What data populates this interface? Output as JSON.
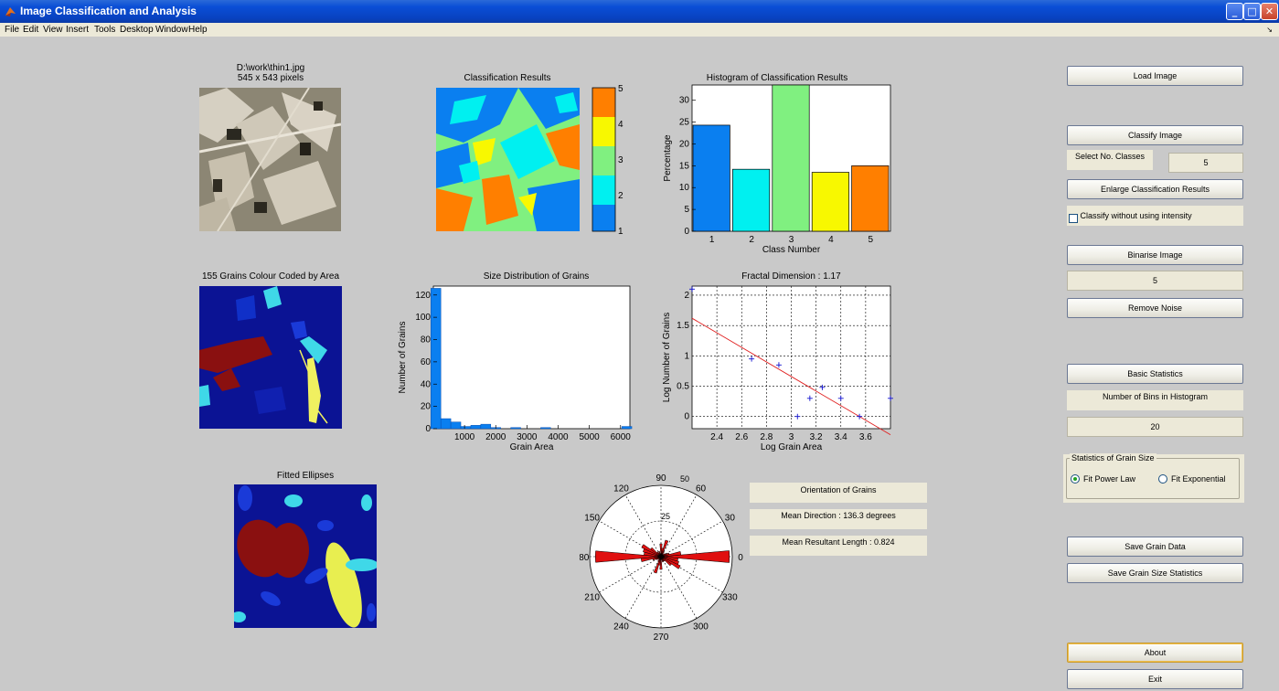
{
  "window": {
    "title": "Image Classification and Analysis"
  },
  "menu": [
    "File",
    "Edit",
    "View",
    "Insert",
    "Tools",
    "Desktop",
    "Window",
    "Help"
  ],
  "original": {
    "path": "D:\\work\\thin1.jpg",
    "size": "545 x 543 pixels"
  },
  "classification": {
    "title": "Classification Results",
    "colorbar_ticks": [
      "1",
      "2",
      "3",
      "4",
      "5"
    ]
  },
  "histogram_title": "Histogram of Classification Results",
  "grains_title": "155 Grains Colour Coded by Area",
  "size_dist_title": "Size Distribution of Grains",
  "fractal_title": "Fractal Dimension  : 1.17",
  "ellipses_title": "Fitted Ellipses",
  "rose": {
    "angle_labels": [
      "90",
      "60",
      "30",
      "0",
      "330",
      "300",
      "270",
      "240",
      "210",
      "180",
      "150",
      "120"
    ],
    "radial_labels": [
      "25",
      "50"
    ]
  },
  "orientation": {
    "title": "Orientation of Grains",
    "mean_direction": "Mean Direction : 136.3 degrees",
    "mean_resultant": "Mean Resultant Length : 0.824"
  },
  "controls": {
    "load_image": "Load Image",
    "classify_image": "Classify Image",
    "select_classes_label": "Select No. Classes",
    "select_classes_value": "5",
    "enlarge": "Enlarge Classification Results",
    "classify_without_intensity": "Classify without using intensity",
    "binarise": "Binarise Image",
    "binarise_value": "5",
    "remove_noise": "Remove Noise",
    "basic_stats": "Basic Statistics",
    "bins_label": "Number of Bins in Histogram",
    "bins_value": "20",
    "grain_stats_group": "Statistics of Grain Size",
    "fit_power": "Fit Power Law",
    "fit_exp": "Fit Exponential",
    "save_grain": "Save Grain Data",
    "save_stats": "Save Grain Size Statistics",
    "about": "About",
    "exit": "Exit"
  },
  "colors": {
    "blue": "#0a7ff0",
    "cyan": "#00f0f0",
    "green": "#80f080",
    "yellow": "#f8f800",
    "orange": "#ff7f00",
    "dark_blue": "#0b1394"
  },
  "chart_data": [
    {
      "type": "bar",
      "title": "Histogram of Classification Results",
      "xlabel": "Class Number",
      "ylabel": "Percentage",
      "categories": [
        "1",
        "2",
        "3",
        "4",
        "5"
      ],
      "values": [
        24.3,
        14.2,
        33.5,
        13.5,
        15.0
      ],
      "colors": [
        "#0a7ff0",
        "#00f0f0",
        "#80f080",
        "#f8f800",
        "#ff7f00"
      ],
      "ylim": [
        0,
        33.5
      ],
      "yticks": [
        0,
        5,
        10,
        15,
        20,
        25,
        30
      ]
    },
    {
      "type": "bar",
      "title": "Size Distribution of Grains",
      "xlabel": "Grain Area",
      "ylabel": "Number of Grains",
      "x": [
        80,
        400,
        720,
        1040,
        1360,
        1680,
        2000,
        2640,
        3600,
        6200
      ],
      "values": [
        126,
        9,
        6,
        2,
        3,
        4,
        1,
        1,
        1,
        2
      ],
      "xlim": [
        0,
        6300
      ],
      "ylim": [
        0,
        128
      ],
      "xticks": [
        1000,
        2000,
        3000,
        4000,
        5000,
        6000
      ],
      "yticks": [
        0,
        20,
        40,
        60,
        80,
        100,
        120
      ]
    },
    {
      "type": "scatter",
      "title": "Fractal Dimension  : 1.17",
      "xlabel": "Log Grain Area",
      "ylabel": "Log Number of Grains",
      "points": [
        [
          2.2,
          2.1
        ],
        [
          2.68,
          0.95
        ],
        [
          2.9,
          0.85
        ],
        [
          3.05,
          0.0
        ],
        [
          3.15,
          0.3
        ],
        [
          3.25,
          0.48
        ],
        [
          3.4,
          0.3
        ],
        [
          3.55,
          0.0
        ],
        [
          3.8,
          0.3
        ]
      ],
      "fit_line": [
        [
          2.2,
          1.62
        ],
        [
          3.8,
          -0.3
        ]
      ],
      "xlim": [
        2.2,
        3.8
      ],
      "ylim": [
        -0.2,
        2.15
      ],
      "xticks": [
        2.4,
        2.6,
        2.8,
        3,
        3.2,
        3.4,
        3.6
      ],
      "yticks": [
        0,
        0.5,
        1,
        1.5,
        2
      ],
      "grid": true
    },
    {
      "type": "rose",
      "title": "Orientation of Grains",
      "rmax": 50,
      "angles_deg": [
        0,
        10,
        20,
        30,
        40,
        50,
        60,
        70,
        80,
        90,
        100,
        110,
        120,
        130,
        140,
        150,
        160,
        170,
        180,
        190,
        200,
        210,
        220,
        230,
        240,
        250,
        260,
        270,
        280,
        290,
        300,
        310,
        320,
        330,
        340,
        350
      ],
      "values": [
        48,
        14,
        6,
        4,
        3,
        2,
        4,
        12,
        6,
        9,
        2,
        4,
        3,
        4,
        9,
        15,
        13,
        12,
        46,
        14,
        6,
        4,
        3,
        2,
        4,
        12,
        6,
        9,
        2,
        4,
        3,
        4,
        9,
        15,
        13,
        12
      ]
    }
  ]
}
